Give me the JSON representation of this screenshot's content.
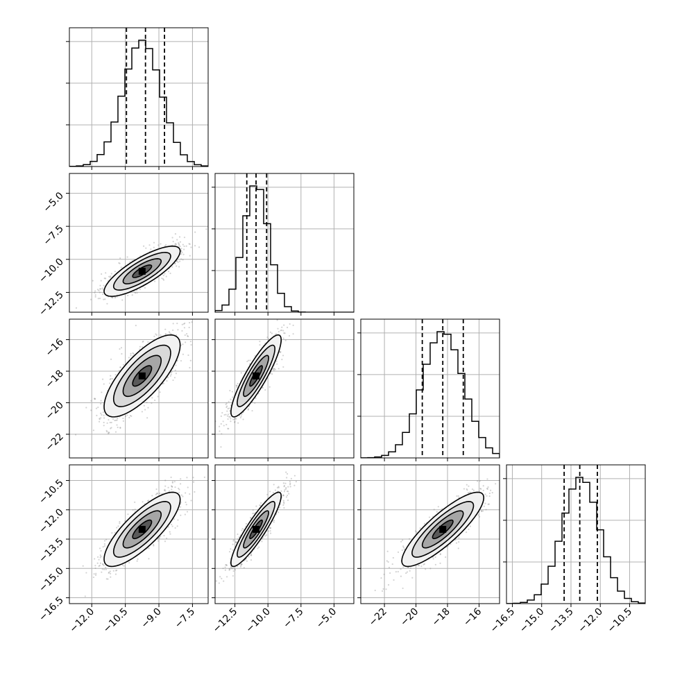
{
  "chart_data": {
    "type": "corner",
    "description_units": "posterior samples of 4 parameters; ranges in data units",
    "colors": {
      "line": "#000000",
      "grid": "#b0b0b0",
      "points": "#808080",
      "background": "#ffffff"
    },
    "grid": true,
    "params": [
      {
        "index": 0,
        "range": [
          -13.0,
          -6.8
        ],
        "ticks": [
          -12.0,
          -10.5,
          -9.0,
          -7.5
        ],
        "tick_labels": [
          "−12.0",
          "−10.5",
          "−9.0",
          "−7.5"
        ],
        "mean": -9.75,
        "sd": 0.85,
        "quantiles": [
          -10.45,
          -9.6,
          -8.75
        ]
      },
      {
        "index": 1,
        "range": [
          -14.0,
          -3.5
        ],
        "ticks": [
          -12.5,
          -10.0,
          -7.5,
          -5.0
        ],
        "tick_labels": [
          "−12.5",
          "−10.0",
          "−7.5",
          "−5.0"
        ],
        "mean": -10.9,
        "sd": 0.95,
        "quantiles": [
          -11.6,
          -10.9,
          -10.1
        ]
      },
      {
        "index": 2,
        "range": [
          -23.5,
          -14.7
        ],
        "ticks": [
          -22,
          -20,
          -18,
          -16
        ],
        "tick_labels": [
          "−22",
          "−20",
          "−18",
          "−16"
        ],
        "mean": -18.3,
        "sd": 1.3,
        "quantiles": [
          -19.6,
          -18.3,
          -17.0
        ]
      },
      {
        "index": 3,
        "range": [
          -16.8,
          -9.7
        ],
        "ticks": [
          -16.5,
          -15.0,
          -13.5,
          -12.0,
          -10.5
        ],
        "tick_labels": [
          "−16.5",
          "−15.0",
          "−13.5",
          "−12.0",
          "−10.5"
        ],
        "mean": -13.0,
        "sd": 0.95,
        "quantiles": [
          -13.85,
          -13.05,
          -12.15
        ]
      }
    ],
    "correlations": {
      "0-1": 0.8,
      "0-2": 0.75,
      "1-2": 0.88,
      "0-3": 0.8,
      "1-3": 0.9,
      "2-3": 0.85
    },
    "contour_levels_sigma": [
      0.5,
      1.0,
      1.5,
      2.0
    ],
    "histogram_bins": 20,
    "n_scatter_points": 1100
  }
}
